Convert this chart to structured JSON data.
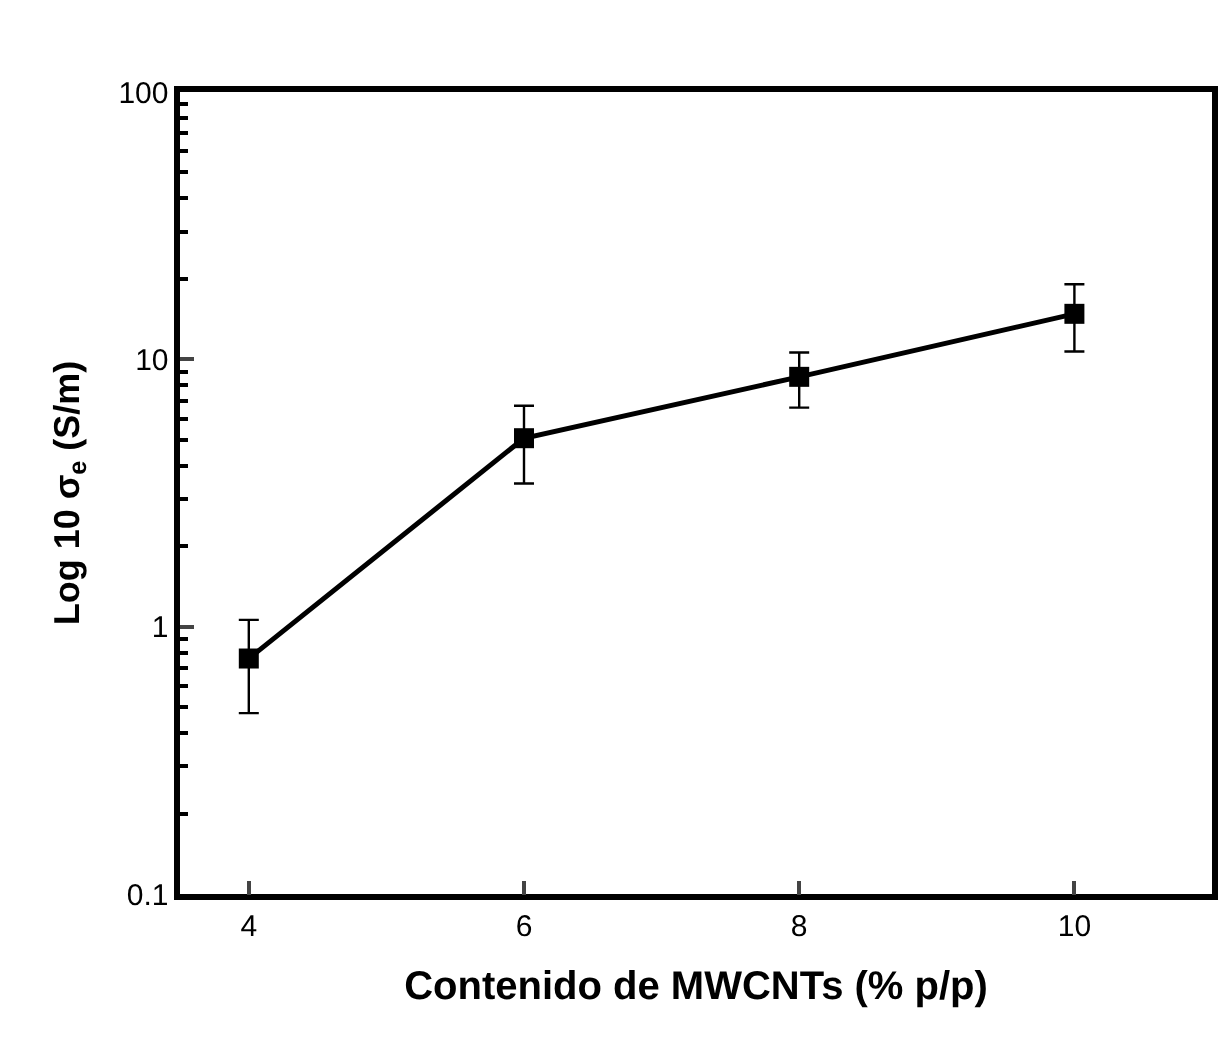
{
  "chart_data": {
    "type": "line",
    "xlabel": "Contenido de MWCNTs (% p/p)",
    "ylabel": "Log 10 σ$_{e}$ (S/m)",
    "x": [
      4,
      6,
      8,
      10
    ],
    "series": [
      {
        "color": "#000000",
        "values": [
          0.76,
          5.07,
          8.6,
          14.8
        ],
        "errors": [
          [
            0.475,
            1.06
          ],
          [
            3.43,
            6.7
          ],
          [
            6.6,
            10.6
          ],
          [
            10.7,
            19.1
          ]
        ]
      }
    ],
    "log": "y",
    "marker": "square",
    "line_style": "solid",
    "legend": false,
    "xlim": [
      3.5,
      11
    ],
    "xticks": [
      4,
      6,
      8,
      10
    ],
    "ylim": [
      0.1,
      100
    ],
    "yticks": [
      {
        "value": 0.1,
        "label": "0.1"
      },
      {
        "value": 0.2,
        "label": null
      },
      {
        "value": 0.3,
        "label": null
      },
      {
        "value": 0.4,
        "label": null
      },
      {
        "value": 0.5,
        "label": null
      },
      {
        "value": 0.6,
        "label": null
      },
      {
        "value": 0.7,
        "label": null
      },
      {
        "value": 0.8,
        "label": null
      },
      {
        "value": 0.9,
        "label": null
      },
      {
        "value": 1,
        "label": "1"
      },
      {
        "value": 2,
        "label": null
      },
      {
        "value": 3,
        "label": null
      },
      {
        "value": 4,
        "label": null
      },
      {
        "value": 5,
        "label": null
      },
      {
        "value": 6,
        "label": null
      },
      {
        "value": 7,
        "label": null
      },
      {
        "value": 8,
        "label": null
      },
      {
        "value": 9,
        "label": null
      },
      {
        "value": 10,
        "label": "10"
      },
      {
        "value": 20,
        "label": null
      },
      {
        "value": 30,
        "label": null
      },
      {
        "value": 40,
        "label": null
      },
      {
        "value": 50,
        "label": null
      },
      {
        "value": 60,
        "label": null
      },
      {
        "value": 70,
        "label": null
      },
      {
        "value": 80,
        "label": null
      },
      {
        "value": 90,
        "label": null
      },
      {
        "value": 100,
        "label": "100"
      }
    ]
  }
}
